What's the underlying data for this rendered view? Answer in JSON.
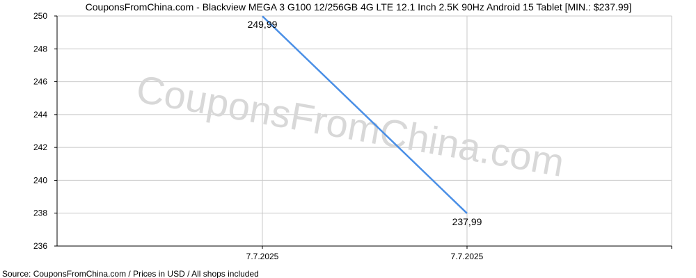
{
  "chart_data": {
    "type": "line",
    "title": "CouponsFromChina.com - Blackview MEGA 3 G100 12/256GB 4G LTE 12.1 Inch 2.5K 90Hz Android 15 Tablet [MIN.: $237.99]",
    "watermark": "CouponsFromChina.com",
    "source": "Source: CouponsFromChina.com / Prices in USD / All shops included",
    "xlabel": "",
    "ylabel": "",
    "ylim": [
      236,
      250
    ],
    "yticks": [
      236,
      238,
      240,
      242,
      244,
      246,
      248,
      250
    ],
    "xtick_labels": [
      "7.7.2025",
      "7.7.2025"
    ],
    "grid": true,
    "series": [
      {
        "color": "#4a8fe6",
        "values": [
          249.99,
          237.99
        ],
        "labels": [
          "249,99",
          "237,99"
        ]
      }
    ]
  }
}
